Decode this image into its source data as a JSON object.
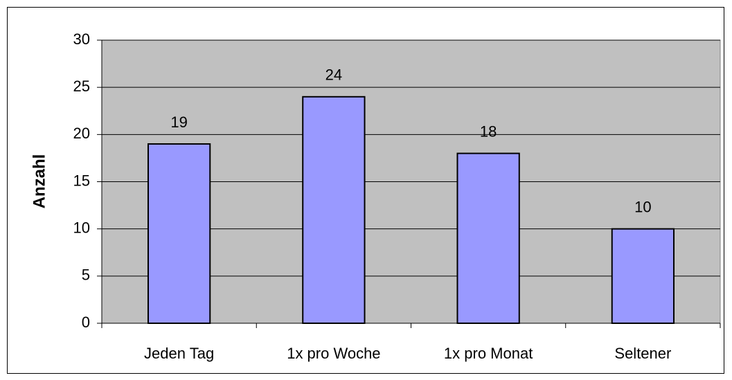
{
  "chart_data": {
    "type": "bar",
    "categories": [
      "Jeden Tag",
      "1x pro Woche",
      "1x pro Monat",
      "Seltener"
    ],
    "values": [
      19,
      24,
      18,
      10
    ],
    "color": "#9999ff",
    "y_label": "Anzahl",
    "ylim": [
      0,
      30
    ],
    "yticks": [
      0,
      5,
      10,
      15,
      20,
      25,
      30
    ],
    "grid": true,
    "data_labels": true
  }
}
